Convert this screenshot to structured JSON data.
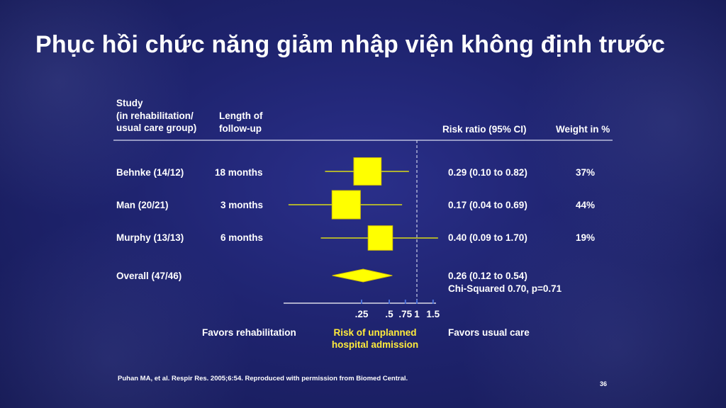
{
  "slide": {
    "title": "Phục hồi chức năng giảm nhập viện không định trước",
    "footnote": "Puhan MA, et al. Respir Res. 2005;6:54. Reproduced with permission from Biomed Central.",
    "page_number": "36"
  },
  "table": {
    "headers": {
      "study": [
        "Study",
        "(in rehabilitation/",
        "usual care group)"
      ],
      "followup": [
        "Length of",
        "follow-up"
      ],
      "risk_ratio": "Risk ratio (95% CI)",
      "weight": "Weight in %"
    },
    "rows": [
      {
        "study": "Behnke (14/12)",
        "followup": "18 months",
        "ci_text": "0.29 (0.10 to 0.82)",
        "weight": "37%"
      },
      {
        "study": "Man (20/21)",
        "followup": "3 months",
        "ci_text": "0.17 (0.04 to 0.69)",
        "weight": "44%"
      },
      {
        "study": "Murphy (13/13)",
        "followup": "6 months",
        "ci_text": "0.40 (0.09 to 1.70)",
        "weight": "19%"
      }
    ],
    "overall": {
      "study": "Overall (47/46)",
      "ci_text": "0.26 (0.12 to 0.54)",
      "heterogeneity": "Chi-Squared 0.70, p=0.71"
    }
  },
  "axis": {
    "tick_labels": [
      ".25",
      ".5",
      ".75",
      "1",
      "1.5"
    ],
    "left_label": "Favors rehabilitation",
    "center_label": [
      "Risk of unplanned",
      "hospital admission"
    ],
    "right_label": "Favors usual care"
  },
  "colors": {
    "marker": "#ffff00",
    "marker_stroke": "#d9c400",
    "axis_tick": "#4a6fd8",
    "highlight": "#ffeb3b",
    "reference_line": "#c9cde8"
  },
  "chart_data": {
    "type": "forest",
    "x_scale": "log",
    "xlim": [
      0.04,
      1.7
    ],
    "x_ticks": [
      0.25,
      0.5,
      0.75,
      1,
      1.5
    ],
    "reference_value": 1,
    "studies": [
      {
        "name": "Behnke (14/12)",
        "rr": 0.29,
        "lo": 0.1,
        "hi": 0.82,
        "weight": 37
      },
      {
        "name": "Man (20/21)",
        "rr": 0.17,
        "lo": 0.04,
        "hi": 0.69,
        "weight": 44
      },
      {
        "name": "Murphy (13/13)",
        "rr": 0.4,
        "lo": 0.09,
        "hi": 1.7,
        "weight": 19
      }
    ],
    "overall": {
      "name": "Overall (47/46)",
      "rr": 0.26,
      "lo": 0.12,
      "hi": 0.54
    }
  }
}
